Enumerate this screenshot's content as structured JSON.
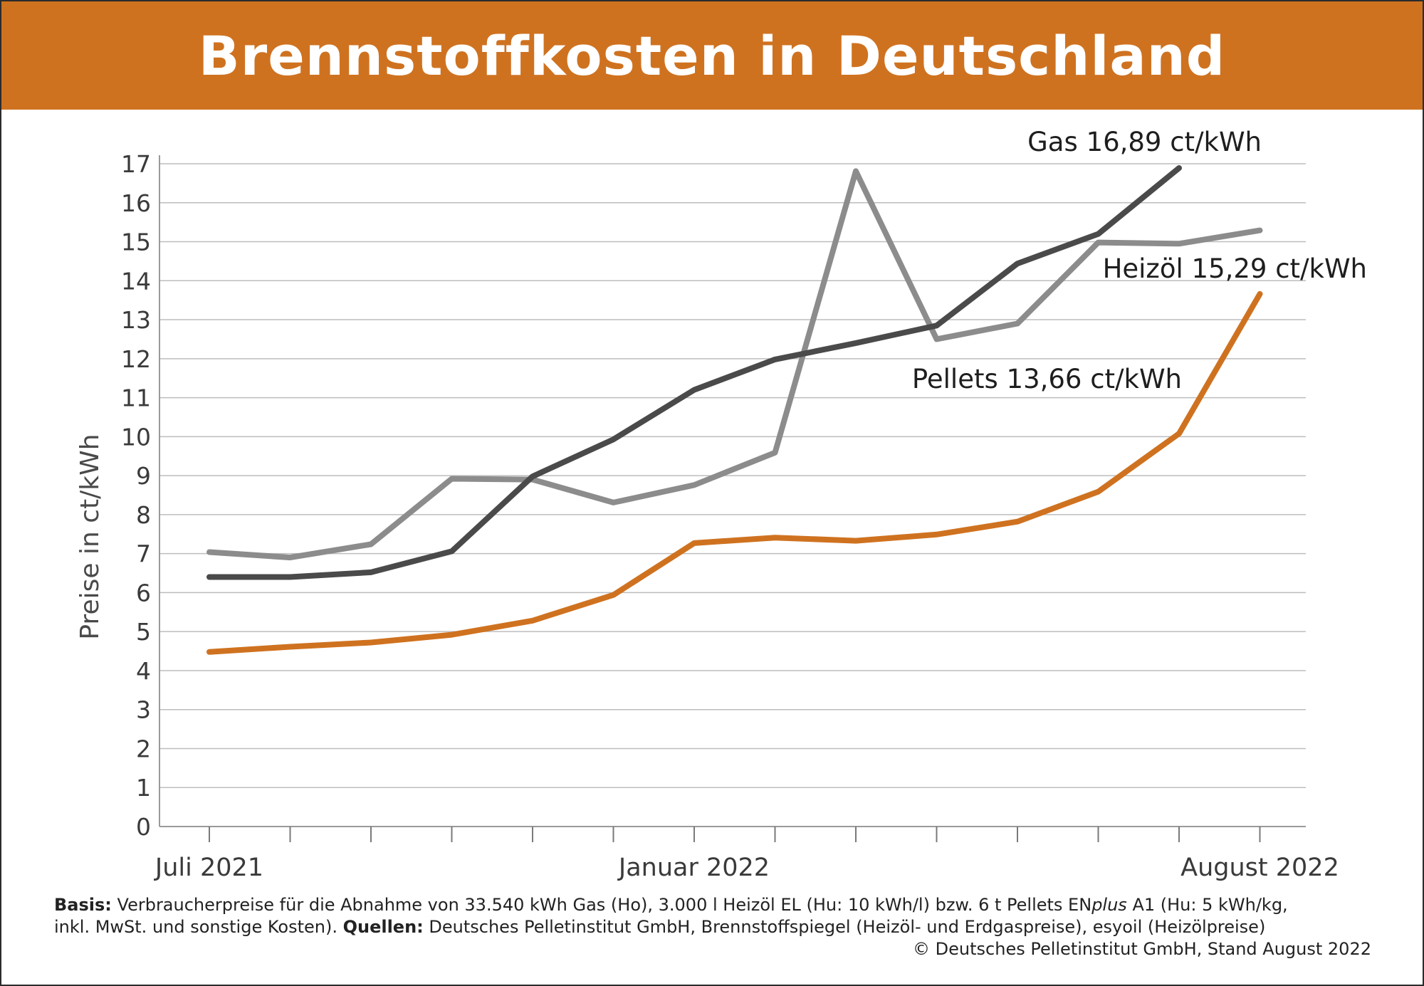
{
  "title": "Brennstoffkosten in Deutschland",
  "colors": {
    "header_bg": "#cf7220",
    "gas": "#4a4a4a",
    "heizoel": "#8c8c8c",
    "pellets": "#cf7220",
    "grid": "#bdbdbd"
  },
  "chart_data": {
    "type": "line",
    "ylabel": "Preise in ct/kWh",
    "xlabel": "",
    "ylim": [
      0,
      17
    ],
    "yticks": [
      0,
      1,
      2,
      3,
      4,
      5,
      6,
      7,
      8,
      9,
      10,
      11,
      12,
      13,
      14,
      15,
      16,
      17
    ],
    "grid": true,
    "x": [
      "2021-07",
      "2021-08",
      "2021-09",
      "2021-10",
      "2021-11",
      "2021-12",
      "2022-01",
      "2022-02",
      "2022-03",
      "2022-04",
      "2022-05",
      "2022-06",
      "2022-07",
      "2022-08"
    ],
    "x_tick_labels": [
      {
        "x": "2021-07",
        "label": "Juli 2021"
      },
      {
        "x": "2022-01",
        "label": "Januar 2022"
      },
      {
        "x": "2022-08",
        "label": "August 2022"
      }
    ],
    "series": [
      {
        "name": "Gas",
        "value_label": "16,89 ct/kWh",
        "color": "#4a4a4a",
        "values": [
          6.4,
          6.4,
          6.52,
          7.06,
          8.98,
          9.93,
          11.2,
          11.98,
          12.4,
          12.85,
          14.44,
          15.2,
          16.89,
          null
        ]
      },
      {
        "name": "Heizöl",
        "value_label": "15,29 ct/kWh",
        "color": "#8c8c8c",
        "values": [
          7.04,
          6.9,
          7.24,
          8.92,
          8.9,
          8.31,
          8.76,
          9.59,
          16.81,
          12.5,
          12.9,
          14.98,
          14.95,
          15.29
        ]
      },
      {
        "name": "Pellets",
        "value_label": "13,66 ct/kWh",
        "color": "#cf7220",
        "values": [
          4.48,
          4.61,
          4.72,
          4.92,
          5.28,
          5.94,
          7.27,
          7.41,
          7.33,
          7.49,
          7.82,
          8.59,
          10.08,
          13.66
        ]
      }
    ]
  },
  "footnote": {
    "basis_label": "Basis:",
    "basis_text": " Verbraucherpreise für die Abnahme von 33.540 kWh Gas (Ho), 3.000 l Heizöl EL (Hu: 10 kWh/l) bzw. 6 t Pellets EN",
    "basis_italic": "plus",
    "basis_text2": " A1 (Hu: 5 kWh/kg,",
    "line2_text": "inkl. MwSt. und sonstige Kosten). ",
    "sources_label": "Quellen:",
    "sources_text": " Deutsches Pelletinstitut GmbH, Brennstoffspiegel (Heizöl- und Erdgaspreise), esyoil (Heizölpreise)",
    "copyright": "© Deutsches Pelletinstitut GmbH, Stand August 2022"
  }
}
